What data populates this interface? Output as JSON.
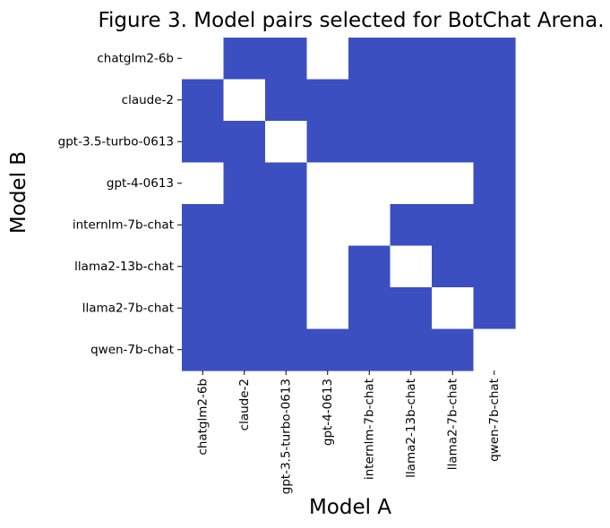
{
  "chart_data": {
    "type": "heatmap",
    "title": "Figure 3. Model pairs selected for BotChat Arena.",
    "xlabel": "Model A",
    "ylabel": "Model B",
    "x_categories": [
      "chatglm2-6b",
      "claude-2",
      "gpt-3.5-turbo-0613",
      "gpt-4-0613",
      "internlm-7b-chat",
      "llama2-13b-chat",
      "llama2-7b-chat",
      "qwen-7b-chat"
    ],
    "y_categories": [
      "chatglm2-6b",
      "claude-2",
      "gpt-3.5-turbo-0613",
      "gpt-4-0613",
      "internlm-7b-chat",
      "llama2-13b-chat",
      "llama2-7b-chat",
      "qwen-7b-chat"
    ],
    "matrix": [
      [
        0,
        1,
        1,
        0,
        1,
        1,
        1,
        1
      ],
      [
        1,
        0,
        1,
        1,
        1,
        1,
        1,
        1
      ],
      [
        1,
        1,
        0,
        1,
        1,
        1,
        1,
        1
      ],
      [
        0,
        1,
        1,
        0,
        0,
        0,
        0,
        1
      ],
      [
        1,
        1,
        1,
        0,
        0,
        1,
        1,
        1
      ],
      [
        1,
        1,
        1,
        0,
        1,
        0,
        1,
        1
      ],
      [
        1,
        1,
        1,
        0,
        1,
        1,
        0,
        1
      ],
      [
        1,
        1,
        1,
        1,
        1,
        1,
        1,
        0
      ]
    ],
    "colors": {
      "selected": "#3c4fc1",
      "not_selected": "#ffffff"
    },
    "legend": false,
    "grid": false
  }
}
